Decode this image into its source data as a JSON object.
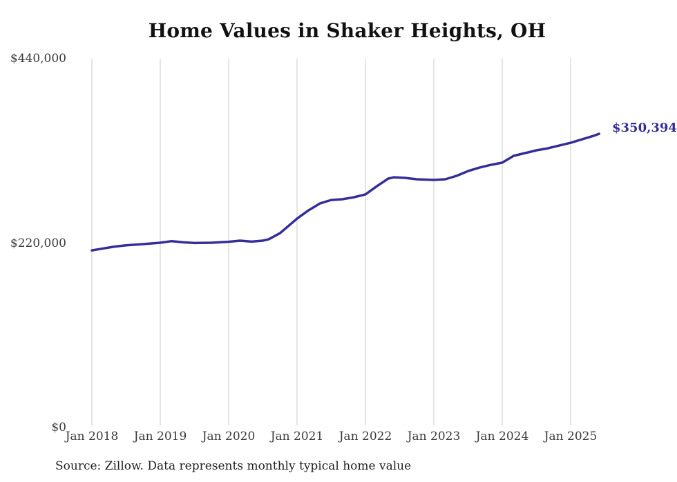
{
  "chart_data": {
    "type": "line",
    "title": "Home Values in Shaker Heights, OH",
    "source_note": "Source: Zillow. Data represents monthly typical home value",
    "end_label": "$350,394",
    "line_color": "#332e98",
    "end_label_color": "#332e98",
    "gridline_color": "#c9c9c9",
    "grid": "vertical-only",
    "legend_position": "none",
    "xlabel": "",
    "ylabel": "",
    "ylim": [
      0,
      440000
    ],
    "y_ticks": [
      {
        "value": 0,
        "label": "$0"
      },
      {
        "value": 220000,
        "label": "$220,000"
      },
      {
        "value": 440000,
        "label": "$440,000"
      }
    ],
    "x_ticks": [
      {
        "month": 0,
        "label": "Jan 2018"
      },
      {
        "month": 12,
        "label": "Jan 2019"
      },
      {
        "month": 24,
        "label": "Jan 2020"
      },
      {
        "month": 36,
        "label": "Jan 2021"
      },
      {
        "month": 48,
        "label": "Jan 2022"
      },
      {
        "month": 60,
        "label": "Jan 2023"
      },
      {
        "month": 72,
        "label": "Jan 2024"
      },
      {
        "month": 84,
        "label": "Jan 2025"
      }
    ],
    "series": [
      {
        "name": "Monthly typical home value",
        "points": [
          [
            "Jan 2018",
            0,
            211300
          ],
          [
            "Mar 2018",
            2,
            213600
          ],
          [
            "May 2018",
            4,
            215800
          ],
          [
            "Jul 2018",
            6,
            217300
          ],
          [
            "Oct 2018",
            9,
            218800
          ],
          [
            "Jan 2019",
            12,
            220400
          ],
          [
            "Mar 2019",
            14,
            222300
          ],
          [
            "May 2019",
            16,
            220900
          ],
          [
            "Jul 2019",
            18,
            220100
          ],
          [
            "Oct 2019",
            21,
            220400
          ],
          [
            "Jan 2020",
            24,
            221600
          ],
          [
            "Mar 2020",
            26,
            222900
          ],
          [
            "May 2020",
            28,
            221700
          ],
          [
            "Jul 2020",
            30,
            222900
          ],
          [
            "Aug 2020",
            31,
            224400
          ],
          [
            "Oct 2020",
            33,
            231800
          ],
          [
            "Jan 2021",
            36,
            249100
          ],
          [
            "Mar 2021",
            38,
            259000
          ],
          [
            "May 2021",
            40,
            267200
          ],
          [
            "Jul 2021",
            42,
            271400
          ],
          [
            "Sep 2021",
            44,
            272300
          ],
          [
            "Nov 2021",
            46,
            274700
          ],
          [
            "Jan 2022",
            48,
            278100
          ],
          [
            "Mar 2022",
            50,
            287800
          ],
          [
            "May 2022",
            52,
            296900
          ],
          [
            "Jun 2022",
            53,
            298500
          ],
          [
            "Aug 2022",
            55,
            297700
          ],
          [
            "Oct 2022",
            57,
            296100
          ],
          [
            "Jan 2023",
            60,
            295300
          ],
          [
            "Mar 2023",
            62,
            296100
          ],
          [
            "May 2023",
            64,
            300200
          ],
          [
            "Jul 2023",
            66,
            305900
          ],
          [
            "Sep 2023",
            68,
            310000
          ],
          [
            "Nov 2023",
            70,
            313300
          ],
          [
            "Jan 2024",
            72,
            315900
          ],
          [
            "Mar 2024",
            74,
            324000
          ],
          [
            "May 2024",
            76,
            327300
          ],
          [
            "Jul 2024",
            78,
            330600
          ],
          [
            "Sep 2024",
            80,
            333000
          ],
          [
            "Nov 2024",
            82,
            336300
          ],
          [
            "Jan 2025",
            84,
            339600
          ],
          [
            "Mar 2025",
            86,
            343700
          ],
          [
            "May 2025",
            88,
            347800
          ],
          [
            "Jun 2025",
            89,
            350394
          ]
        ]
      }
    ]
  }
}
